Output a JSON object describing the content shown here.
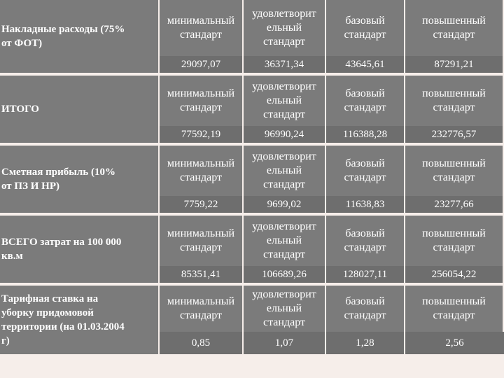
{
  "headers": {
    "min": "минимальный\nстандарт",
    "satisf": "удовлетворит\nельный\nстандарт",
    "base": "базовый\nстандарт",
    "high": "повышенный\nстандарт"
  },
  "rows": [
    {
      "label": "Накладные расходы (75%\nот ФОТ)",
      "values": [
        "29097,07",
        "36371,34",
        "43645,61",
        "87291,21"
      ]
    },
    {
      "label": "ИТОГО",
      "values": [
        "77592,19",
        "96990,24",
        "116388,28",
        "232776,57"
      ]
    },
    {
      "label": "Сметная прибыль (10%\nот ПЗ И НР)",
      "values": [
        "7759,22",
        "9699,02",
        "11638,83",
        "23277,66"
      ]
    },
    {
      "label": "ВСЕГО затрат на 100 000\nкв.м",
      "values": [
        "85351,41",
        "106689,26",
        "128027,11",
        "256054,22"
      ]
    },
    {
      "label": "Тарифная ставка на\nуборку придомовой\nтерритории (на 01.03.2004\nг)",
      "values": [
        "0,85",
        "1,07",
        "1,28",
        "2,56"
      ]
    }
  ]
}
